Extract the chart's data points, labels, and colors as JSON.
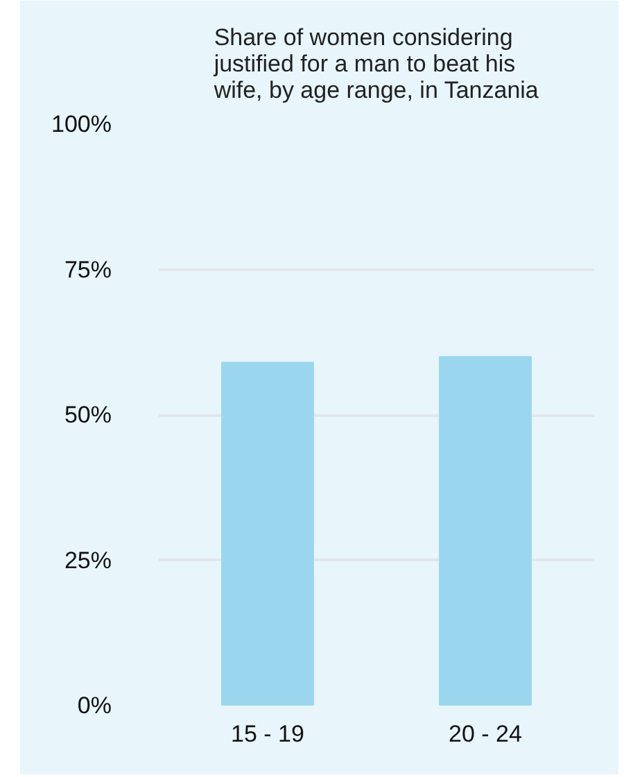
{
  "chart_data": {
    "type": "bar",
    "title": "Share of women considering justified for a man to beat his wife, by age range, in Tanzania",
    "categories": [
      "15 - 19",
      "20 - 24"
    ],
    "values": [
      59,
      60
    ],
    "color": "#9ad7ef",
    "ylim": [
      0,
      100
    ],
    "yticks": [
      {
        "value": 0,
        "label": "0%"
      },
      {
        "value": 25,
        "label": "25%"
      },
      {
        "value": 50,
        "label": "50%"
      },
      {
        "value": 75,
        "label": "75%"
      },
      {
        "value": 100,
        "label": "100%"
      }
    ],
    "grid": "y"
  }
}
